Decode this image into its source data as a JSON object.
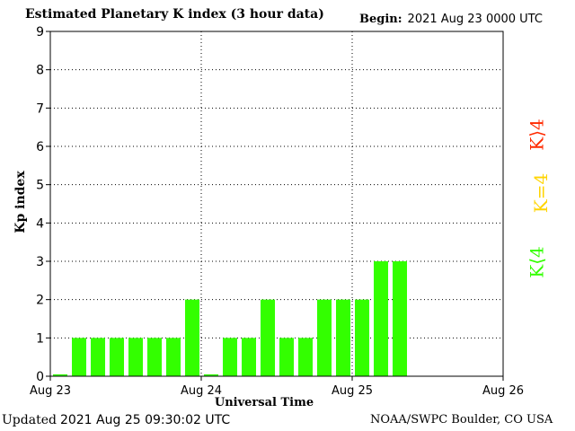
{
  "header": {
    "title": "Estimated Planetary K index (3 hour data)",
    "begin_label": "Begin:",
    "begin_value": "2021 Aug 23 0000 UTC"
  },
  "footer": {
    "updated_label": "Updated",
    "updated_value": "2021 Aug 25 09:30:02 UTC",
    "source": "NOAA/SWPC Boulder, CO USA"
  },
  "legend": {
    "high": {
      "label": "K⟩4",
      "color": "#ff2a00"
    },
    "equal": {
      "label": "K=4",
      "color": "#ffd400"
    },
    "low": {
      "label": "K⟨4",
      "color": "#33ff00"
    }
  },
  "chart_data": {
    "type": "bar",
    "title": "Estimated Planetary K index (3 hour data)",
    "ylabel": "Kp index",
    "xlabel": "Universal Time",
    "ylim": [
      0,
      9
    ],
    "yticks": [
      "0",
      "1",
      "2",
      "3",
      "4",
      "5",
      "6",
      "7",
      "8",
      "9"
    ],
    "xticks": [
      "Aug 23",
      "Aug 24",
      "Aug 25",
      "Aug 26"
    ],
    "grid": true,
    "bar_color": "#33ff00",
    "values": [
      0.05,
      1,
      1,
      1,
      1,
      1,
      1,
      2,
      0.05,
      1,
      1,
      2,
      1,
      1,
      2,
      2,
      2,
      3,
      3
    ]
  }
}
